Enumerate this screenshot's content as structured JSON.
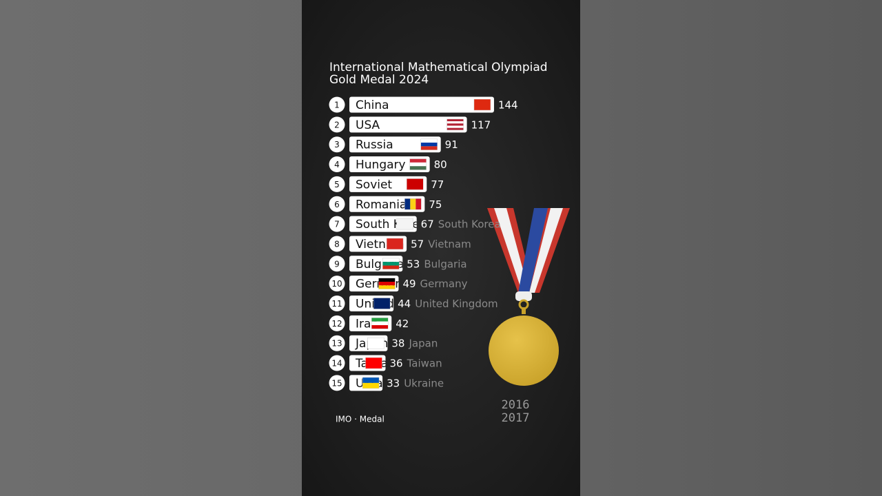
{
  "chart_data": {
    "type": "bar",
    "orientation": "horizontal",
    "title_lines": [
      "International Mathematical Olympiad",
      "Gold Medal 2024"
    ],
    "ranks": [
      1,
      2,
      3,
      4,
      5,
      6,
      7,
      8,
      9,
      10,
      11,
      12,
      13,
      14,
      15
    ],
    "categories": [
      "China",
      "USA",
      "Russia",
      "Hungary",
      "Soviet",
      "Romania",
      "South Korea",
      "Vietnam",
      "Bulgaria",
      "Germany",
      "United Kingdom",
      "Iran",
      "Japan",
      "Taiwan",
      "Ukraine"
    ],
    "values": [
      144,
      117,
      91,
      80,
      77,
      75,
      67,
      57,
      53,
      49,
      44,
      42,
      38,
      36,
      33
    ],
    "trailing_labels": [
      null,
      null,
      null,
      null,
      null,
      null,
      "South Korea",
      "Vietnam",
      "Bulgaria",
      "Germany",
      "United Kingdom",
      null,
      "Japan",
      "Taiwan",
      "Ukraine"
    ],
    "bar_color": "#ffffff",
    "flags": [
      {
        "dir": "h",
        "colors": [
          "#de2910"
        ]
      },
      {
        "dir": "h",
        "colors": [
          "#b22234",
          "#ffffff",
          "#b22234",
          "#ffffff",
          "#b22234"
        ]
      },
      {
        "dir": "h",
        "colors": [
          "#ffffff",
          "#0039a6",
          "#d52b1e"
        ]
      },
      {
        "dir": "h",
        "colors": [
          "#ce2939",
          "#ffffff",
          "#477050"
        ]
      },
      {
        "dir": "h",
        "colors": [
          "#cc0000"
        ]
      },
      {
        "dir": "v",
        "colors": [
          "#002b7f",
          "#fcd116",
          "#ce1126"
        ]
      },
      {
        "dir": "h",
        "colors": [
          "#f4f4f4"
        ]
      },
      {
        "dir": "h",
        "colors": [
          "#da251d"
        ]
      },
      {
        "dir": "h",
        "colors": [
          "#ffffff",
          "#00966e",
          "#d62612"
        ]
      },
      {
        "dir": "h",
        "colors": [
          "#000000",
          "#dd0000",
          "#ffce00"
        ]
      },
      {
        "dir": "h",
        "colors": [
          "#012169"
        ]
      },
      {
        "dir": "h",
        "colors": [
          "#239f40",
          "#ffffff",
          "#da0000"
        ]
      },
      {
        "dir": "h",
        "colors": [
          "#ffffff"
        ]
      },
      {
        "dir": "h",
        "colors": [
          "#fe0000"
        ]
      },
      {
        "dir": "h",
        "colors": [
          "#0057b7",
          "#ffd700"
        ]
      }
    ],
    "years": [
      2016,
      2017
    ],
    "source": "IMO · Medal"
  }
}
